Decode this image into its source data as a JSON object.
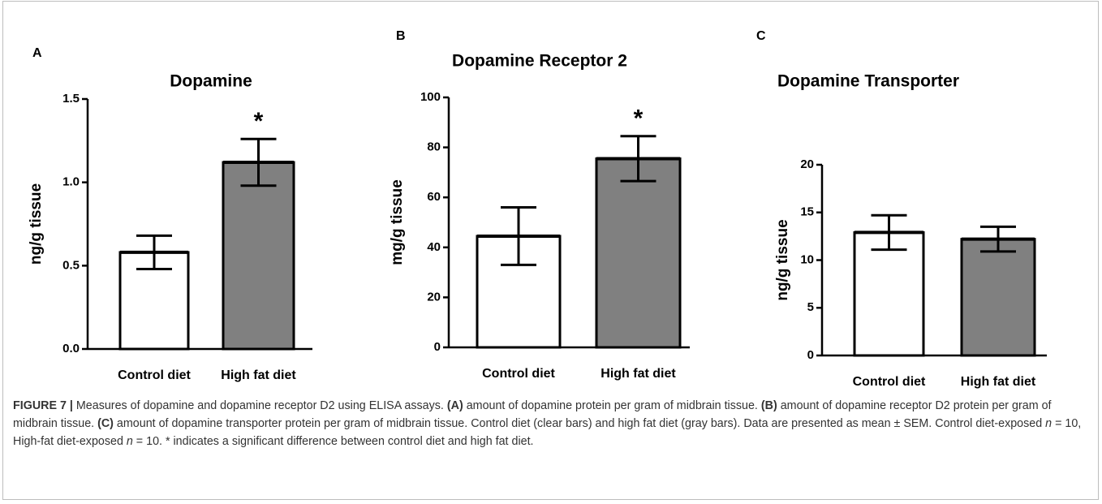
{
  "chart_data": [
    {
      "type": "bar",
      "panel": "A",
      "title": "Dopamine",
      "ylabel": "ng/g tissue",
      "categories": [
        "Control diet",
        "High fat diet"
      ],
      "values": [
        0.58,
        1.12
      ],
      "errors": [
        0.1,
        0.14
      ],
      "colors": [
        "#ffffff",
        "#808080"
      ],
      "ylim": [
        0,
        1.5
      ],
      "yticks": [
        {
          "value": 0,
          "label": "0.0"
        },
        0.5,
        {
          "value": 1,
          "label": "1.0"
        },
        1.5
      ],
      "annotations": [
        {
          "text": "*",
          "x": "High fat diet"
        }
      ]
    },
    {
      "type": "bar",
      "panel": "B",
      "title": "Dopamine Receptor 2",
      "ylabel": "mg/g tissue",
      "categories": [
        "Control diet",
        "High fat diet"
      ],
      "values": [
        44.5,
        75.5
      ],
      "errors": [
        11.5,
        9
      ],
      "colors": [
        "#ffffff",
        "#808080"
      ],
      "ylim": [
        0,
        100
      ],
      "yticks": [
        0,
        20,
        40,
        60,
        80,
        100
      ],
      "annotations": [
        {
          "text": "*",
          "x": "High fat diet"
        }
      ]
    },
    {
      "type": "bar",
      "panel": "C",
      "title": "Dopamine Transporter",
      "ylabel": "ng/g tissue",
      "categories": [
        "Control diet",
        "High fat diet"
      ],
      "values": [
        12.9,
        12.2
      ],
      "errors": [
        1.8,
        1.3
      ],
      "colors": [
        "#ffffff",
        "#808080"
      ],
      "ylim": [
        0,
        20
      ],
      "yticks": [
        0,
        5,
        10,
        15,
        20
      ],
      "annotations": []
    }
  ],
  "caption": [
    "FIGURE 7 |",
    " Measures of dopamine and dopamine receptor D2 using ELISA assays. ",
    "(A)",
    " amount of dopamine protein per gram of midbrain tissue. ",
    "(B)",
    " amount of dopamine receptor D2 protein per gram of midbrain tissue. ",
    "(C)",
    " amount of dopamine transporter protein per gram of midbrain tissue. Control diet (clear bars) and high fat diet (gray bars). Data are presented as mean ± SEM. Control diet-exposed ",
    "n",
    " = 10, High-fat diet-exposed ",
    "n",
    " = 10. * indicates a significant difference between control diet and high fat diet."
  ]
}
